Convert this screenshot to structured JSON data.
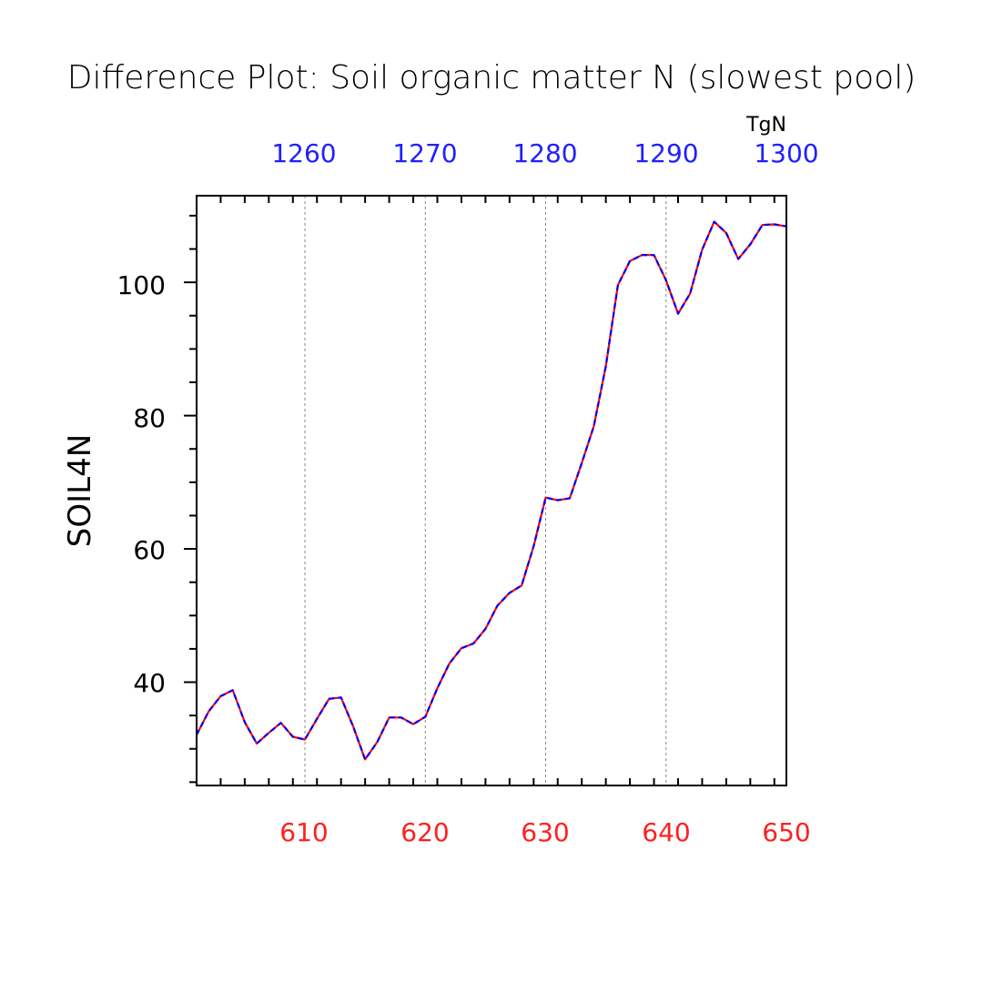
{
  "chart_data": {
    "type": "line",
    "title": "Difference Plot: Soil organic matter N (slowest pool)",
    "ylabel": "SOIL4N",
    "units_label": "TgN",
    "top_axis_ticks": [
      "1260",
      "1270",
      "1280",
      "1290",
      "1300"
    ],
    "bottom_axis_ticks": [
      "610",
      "620",
      "630",
      "640",
      "650"
    ],
    "y_ticks": [
      "40",
      "60",
      "80",
      "100"
    ],
    "top_axis_color": "#2020ff",
    "bottom_axis_color": "#ff2020",
    "xlim": [
      601,
      650
    ],
    "ylim": [
      24.5,
      113
    ],
    "grid": "dashed vertical at major x ticks",
    "series": [
      {
        "line_color_primary": "#ff0000",
        "line_color_secondary": "#0000ff",
        "x": [
          601,
          602,
          603,
          604,
          605,
          606,
          607,
          608,
          609,
          610,
          611,
          612,
          613,
          614,
          615,
          616,
          617,
          618,
          619,
          620,
          621,
          622,
          623,
          624,
          625,
          626,
          627,
          628,
          629,
          630,
          631,
          632,
          633,
          634,
          635,
          636,
          637,
          638,
          639,
          640,
          641,
          642,
          643,
          644,
          645,
          646,
          647,
          648,
          649,
          650
        ],
        "values": [
          32.1,
          35.6,
          37.9,
          38.8,
          34.0,
          30.8,
          32.4,
          33.9,
          31.8,
          31.4,
          34.5,
          37.5,
          37.7,
          33.4,
          28.4,
          31.0,
          34.7,
          34.7,
          33.7,
          34.8,
          39.1,
          42.8,
          45.1,
          45.8,
          48.0,
          51.5,
          53.4,
          54.5,
          60.4,
          67.7,
          67.3,
          67.6,
          72.9,
          78.4,
          87.4,
          99.6,
          103.2,
          104.1,
          104.1,
          100.3,
          95.3,
          98.3,
          104.9,
          109.1,
          107.4,
          103.5,
          105.7,
          108.6,
          108.7,
          108.4
        ]
      }
    ]
  }
}
